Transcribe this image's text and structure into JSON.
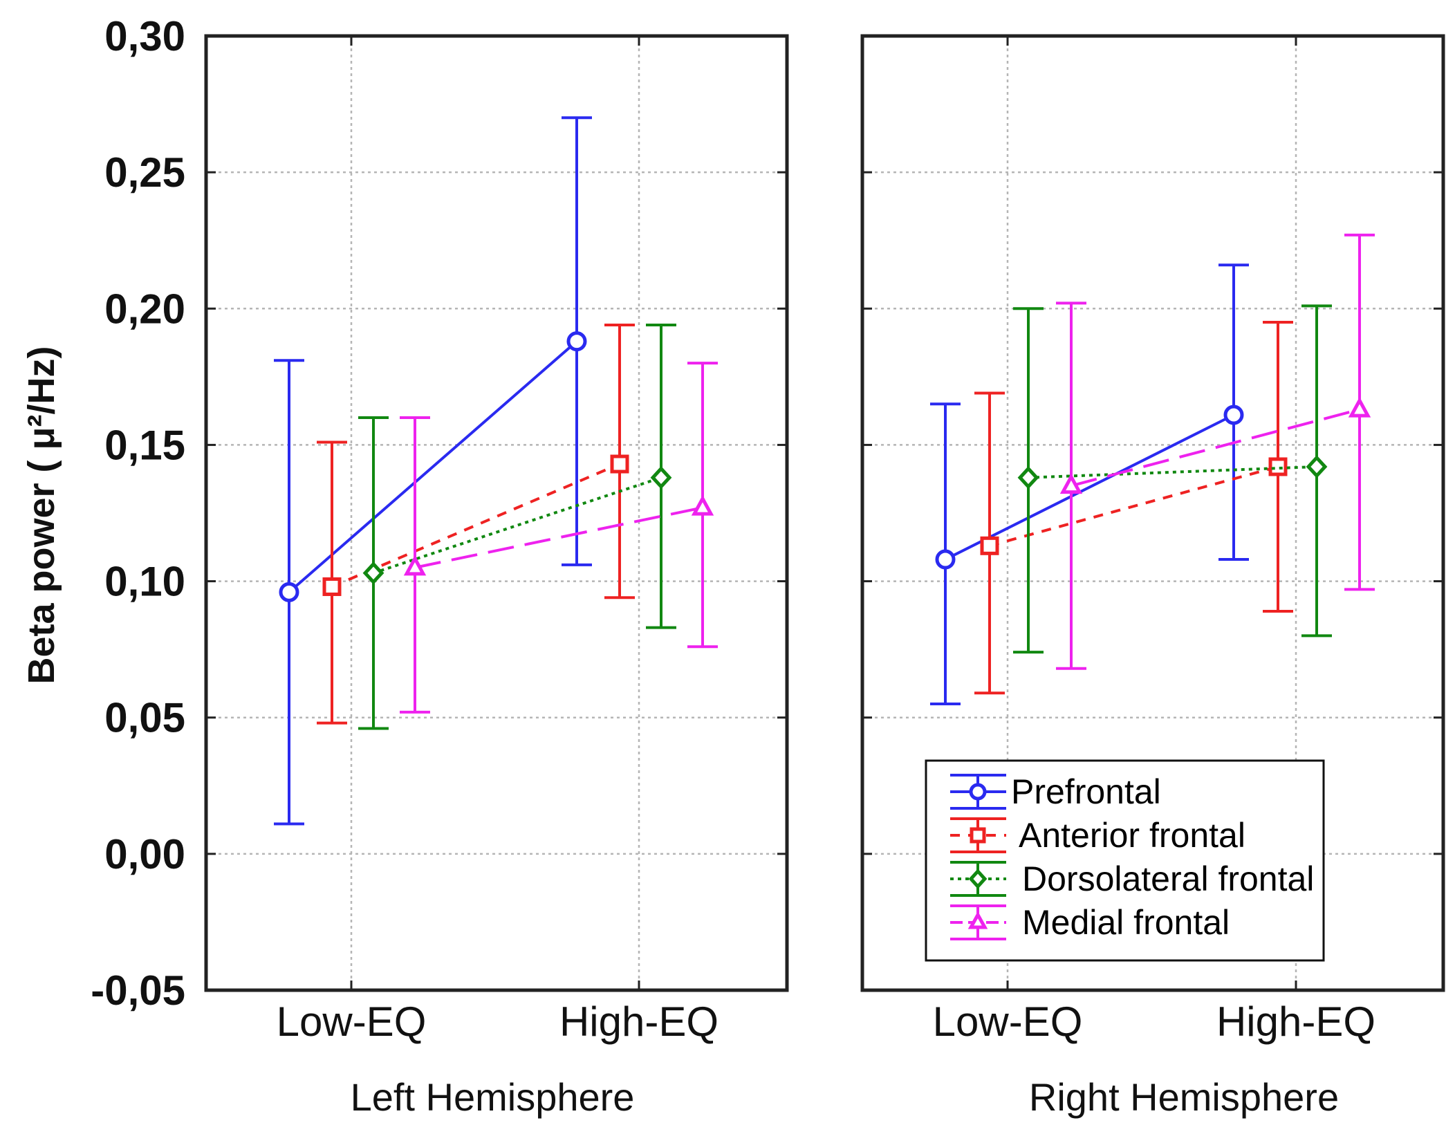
{
  "chart_data": {
    "type": "line",
    "ylabel": "Beta power ( μ²/Hz)",
    "ylim": [
      -0.05,
      0.3
    ],
    "yticks": [
      -0.05,
      0.0,
      0.05,
      0.1,
      0.15,
      0.2,
      0.25,
      0.3
    ],
    "ytick_labels": [
      "-0,05",
      "0,00",
      "0,05",
      "0,10",
      "0,15",
      "0,20",
      "0,25",
      "0,30"
    ],
    "categories": [
      "Low-EQ",
      "High-EQ"
    ],
    "grid": true,
    "legend_location": "bottom-right of right panel",
    "series_style": [
      {
        "name": "Prefrontal",
        "color": "#2a2af0",
        "marker": "circle",
        "dash": "solid"
      },
      {
        "name": "Anterior frontal",
        "color": "#ee2222",
        "marker": "square",
        "dash": "short-dash"
      },
      {
        "name": "Dorsolateral frontal",
        "color": "#118811",
        "marker": "diamond",
        "dash": "dotted"
      },
      {
        "name": "Medial frontal",
        "color": "#ee22ee",
        "marker": "triangle",
        "dash": "long-dash"
      }
    ],
    "panels": [
      {
        "title": "Left Hemisphere",
        "series": [
          {
            "name": "Prefrontal",
            "values": [
              0.096,
              0.188
            ],
            "lower": [
              0.011,
              0.106
            ],
            "upper": [
              0.181,
              0.27
            ]
          },
          {
            "name": "Anterior frontal",
            "values": [
              0.098,
              0.143
            ],
            "lower": [
              0.048,
              0.094
            ],
            "upper": [
              0.151,
              0.194
            ]
          },
          {
            "name": "Dorsolateral frontal",
            "values": [
              0.103,
              0.138
            ],
            "lower": [
              0.046,
              0.083
            ],
            "upper": [
              0.16,
              0.194
            ]
          },
          {
            "name": "Medial frontal",
            "values": [
              0.105,
              0.127
            ],
            "lower": [
              0.052,
              0.076
            ],
            "upper": [
              0.16,
              0.18
            ]
          }
        ]
      },
      {
        "title": "Right Hemisphere",
        "series": [
          {
            "name": "Prefrontal",
            "values": [
              0.108,
              0.161
            ],
            "lower": [
              0.055,
              0.108
            ],
            "upper": [
              0.165,
              0.216
            ]
          },
          {
            "name": "Anterior frontal",
            "values": [
              0.113,
              0.142
            ],
            "lower": [
              0.059,
              0.089
            ],
            "upper": [
              0.169,
              0.195
            ]
          },
          {
            "name": "Dorsolateral frontal",
            "values": [
              0.138,
              0.142
            ],
            "lower": [
              0.074,
              0.08
            ],
            "upper": [
              0.2,
              0.201
            ]
          },
          {
            "name": "Medial frontal",
            "values": [
              0.135,
              0.163
            ],
            "lower": [
              0.068,
              0.097
            ],
            "upper": [
              0.202,
              0.227
            ]
          }
        ]
      }
    ]
  }
}
